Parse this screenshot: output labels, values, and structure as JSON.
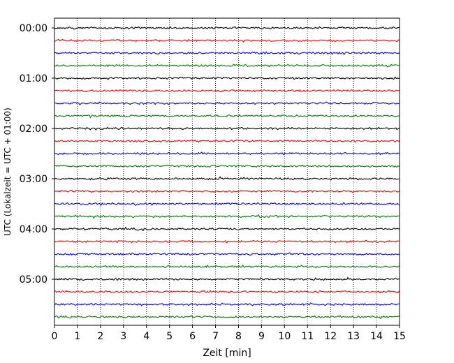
{
  "chart_data": {
    "type": "line",
    "title": "",
    "xlabel": "Zeit  [min]",
    "ylabel": "UTC (Lokalzeit = UTC + 01:00)",
    "xlim": [
      0,
      15
    ],
    "x_ticks": [
      "0",
      "1",
      "2",
      "3",
      "4",
      "5",
      "6",
      "7",
      "8",
      "9",
      "10",
      "11",
      "12",
      "13",
      "14",
      "15"
    ],
    "y_tick_labels": [
      "00:00",
      "01:00",
      "02:00",
      "03:00",
      "04:00",
      "05:00"
    ],
    "grid": "vertical dotted",
    "row_colors": [
      "#000000",
      "#ff0000",
      "#0000ff",
      "#008000"
    ],
    "rows": [
      "00:00",
      "00:15",
      "00:30",
      "00:45",
      "01:00",
      "01:15",
      "01:30",
      "01:45",
      "02:00",
      "02:15",
      "02:30",
      "02:45",
      "03:00",
      "03:15",
      "03:30",
      "03:45",
      "04:00",
      "04:15",
      "04:30",
      "04:45",
      "05:00",
      "05:15",
      "05:30",
      "05:45"
    ],
    "series_description": "seismogram helicorder: one noise trace per 15-minute row"
  }
}
